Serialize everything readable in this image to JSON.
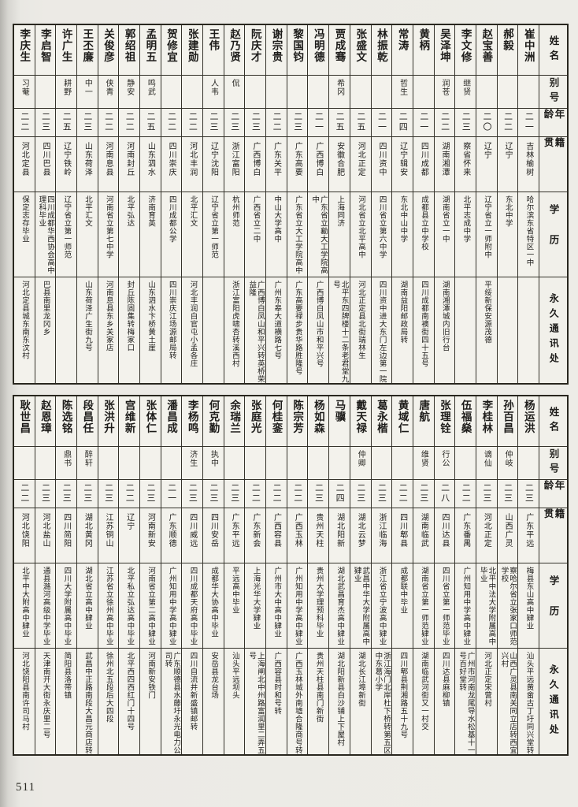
{
  "page": {
    "number": "511"
  },
  "headers": {
    "name": "姓名",
    "alias": "别号",
    "age": "年龄",
    "native_place": "籍贯",
    "education": "学历",
    "address": "永久通讯处"
  },
  "sections": [
    {
      "people": [
        {
          "name": "崔中洲",
          "alias": "",
          "age": "二一",
          "native_place": "吉林榆树",
          "education": "哈尔滨东省特区一中",
          "address": ""
        },
        {
          "name": "郝毅",
          "alias": "",
          "age": "二二",
          "native_place": "辽宁",
          "education": "东北中学",
          "address": ""
        },
        {
          "name": "赵宝善",
          "alias": "",
          "age": "二〇",
          "native_place": "辽宁",
          "education": "辽宁省立一师附中",
          "address": "平绥新保安源茂德"
        },
        {
          "name": "李文修",
          "alias": "继贤",
          "age": "二三",
          "native_place": "察省怀来",
          "education": "北平志成中学",
          "address": ""
        },
        {
          "name": "吴泽坤",
          "alias": "润苍",
          "age": "二二",
          "native_place": "湖南湘潭",
          "education": "湖南省立一中",
          "address": "湖南湘潭城内旧行台"
        },
        {
          "name": "黄柄",
          "alias": "",
          "age": "二一",
          "native_place": "四川成都",
          "education": "成都县立中学校",
          "address": "四川成都南襖街四十五号"
        },
        {
          "name": "常涛",
          "alias": "哲生",
          "age": "二四",
          "native_place": "辽宁辑安",
          "education": "东北中山中学",
          "address": "湖南益阳邮政局转"
        },
        {
          "name": "林振乾",
          "alias": "",
          "age": "二一",
          "native_place": "四川资中",
          "education": "四川省立第六中学",
          "address": "四川资中进大东门左边第一院"
        },
        {
          "name": "张盛文",
          "alias": "",
          "age": "二五",
          "native_place": "河北正定",
          "education": "河北省立北平高中",
          "address": "河北正定县北街瑞林生"
        },
        {
          "name": "贾成骞",
          "alias": "希冈",
          "age": "二五",
          "native_place": "安徽合肥",
          "education": "上海同济",
          "address": "北平东四牌楼十二条老君堂九号"
        },
        {
          "name": "冯明德",
          "alias": "",
          "age": "二一",
          "native_place": "广西博白",
          "education": "广东省立勷大工学院高中",
          "address": "广西博白凤山市和平兴号"
        },
        {
          "name": "黎国钧",
          "alias": "",
          "age": "二三",
          "native_place": "广东高要",
          "education": "广东省立大工学院高中",
          "address": "广东高要禄步贵华路胜隆号"
        },
        {
          "name": "谢宗贵",
          "alias": "",
          "age": "二二",
          "native_place": "广东关平",
          "education": "中山大学高中",
          "address": "广州东皋大道横路七号"
        },
        {
          "name": "阮庆才",
          "alias": "",
          "age": "二三",
          "native_place": "广西博白",
          "education": "广西省立二中",
          "address": "广西博白凤山和平兴转英桥荣益隆"
        },
        {
          "name": "赵乃贤",
          "alias": "侃",
          "age": "二三",
          "native_place": "浙江富阳",
          "education": "杭州师范",
          "address": "浙江富阳虎啸杏转溪西村"
        },
        {
          "name": "王伟",
          "alias": "人韦",
          "age": "二三",
          "native_place": "辽宁沈阳",
          "education": "辽宁省立第一师范",
          "address": ""
        },
        {
          "name": "张建勋",
          "alias": "",
          "age": "二二",
          "native_place": "河北丰润",
          "education": "北平汇文",
          "address": "河北丰润白官屯小孟各庄"
        },
        {
          "name": "贺修宜",
          "alias": "",
          "age": "二二",
          "native_place": "四川崇庆",
          "education": "四川成都公学",
          "address": "四川崇庆江场源邮局转"
        },
        {
          "name": "孟明五",
          "alias": "鸣武",
          "age": "二五",
          "native_place": "山东泗水",
          "education": "济南育英",
          "address": "山东泗水卞桥黄土崖"
        },
        {
          "name": "郭绍祖",
          "alias": "静安",
          "age": "二二",
          "native_place": "河南封丘",
          "education": "北平弘达",
          "address": "封丘陈固集转梅家口"
        },
        {
          "name": "关俊彦",
          "alias": "侠青",
          "age": "二二",
          "native_place": "河南息县",
          "education": "河南省立第七中学",
          "address": "河南息县东乡关家店"
        },
        {
          "name": "王丕廉",
          "alias": "中一",
          "age": "二三",
          "native_place": "山东荷泽",
          "education": "北平汇文",
          "address": "山东荷泽广生街九号"
        },
        {
          "name": "许广生",
          "alias": "耕野",
          "age": "二五",
          "native_place": "辽宁铁岭",
          "education": "辽宁省立第一师范",
          "address": ""
        },
        {
          "name": "李启智",
          "alias": "",
          "age": "二三",
          "native_place": "四川巴县",
          "education": "四川成都华西协会高中理科毕业",
          "address": "巴县南里龙冈乡"
        },
        {
          "name": "李庆生",
          "alias": "习菴",
          "age": "二二",
          "native_place": "河北定县",
          "education": "保定志存毕业",
          "address": "河北定县城东南东汶村"
        }
      ]
    },
    {
      "people": [
        {
          "name": "杨运洪",
          "alias": "",
          "age": "二三",
          "native_place": "广东平远",
          "education": "梅县东山高中肄业",
          "address": "汕头平远黄畲古丁圩同兴堂转"
        },
        {
          "name": "孙百昌",
          "alias": "仲岐",
          "age": "二三",
          "native_place": "山西广灵",
          "education": "察哈尔省立张家口师范学校",
          "address": "山西广灵县南关同立店转西宜兴村"
        },
        {
          "name": "李桂林",
          "alias": "谪仙",
          "age": "二三",
          "native_place": "河北正定",
          "education": "北平中法大学附属高中毕业",
          "address": "河北正定宋营村"
        },
        {
          "name": "伍福燊",
          "alias": "",
          "age": "二二",
          "native_place": "广东番禺",
          "education": "广州知用中学高中肄业",
          "address": "广州市河南龙尾导水松基十一号百好堂转"
        },
        {
          "name": "张理铨",
          "alias": "行公",
          "age": "二八",
          "native_place": "四川达县",
          "education": "四川省立第一师范毕业",
          "address": "四川达县麻柳镇"
        },
        {
          "name": "唐航",
          "alias": "维贤",
          "age": "二三",
          "native_place": "湖南临武",
          "education": "湖南省立第一师范肄业",
          "address": "湖南临武河街又一村交"
        },
        {
          "name": "黄域仁",
          "alias": "",
          "age": "二二",
          "native_place": "四川郫县",
          "education": "成都联中毕业",
          "address": "四川郫县荆湘路五十九号"
        },
        {
          "name": "葛永楷",
          "alias": "",
          "age": "二三",
          "native_place": "浙江临海",
          "education": "浙江省立宁波高中肄业",
          "address": "浙江海门北岸杜下桥转第五区中东葛小学"
        },
        {
          "name": "戴天禄",
          "alias": "仲卿",
          "age": "二三",
          "native_place": "湖北云梦",
          "education": "武昌中华大学附属高中肄业",
          "address": "湖北长江埠新街"
        },
        {
          "name": "马骥",
          "alias": "",
          "age": "二四",
          "native_place": "湖北阳新",
          "education": "湖北武昌育杰高中肄业",
          "address": "湖北阳新县白沙铺上下屋村"
        },
        {
          "name": "杨如森",
          "alias": "",
          "age": "二三",
          "native_place": "贵州天柱",
          "education": "贵州大学理预科毕业",
          "address": "贵州天柱县南门新街"
        },
        {
          "name": "陈宗芳",
          "alias": "",
          "age": "二二",
          "native_place": "广西玉林",
          "education": "广州知用中学高中肄业",
          "address": "广西玉林城外南墟合隆商号转"
        },
        {
          "name": "何桂銮",
          "alias": "",
          "age": "二二",
          "native_place": "广西容县",
          "education": "广州市大中高中肄业",
          "address": "广西容县时和号转"
        },
        {
          "name": "张庭光",
          "alias": "",
          "age": "二二",
          "native_place": "广东新会",
          "education": "上海光华大学肄业",
          "address": "上海闸北中州路富润里二弄五号"
        },
        {
          "name": "余瑞兰",
          "alias": "",
          "age": "二三",
          "native_place": "广东平远",
          "education": "平远高中毕业",
          "address": "汕头平远坝头"
        },
        {
          "name": "何克勤",
          "alias": "执中",
          "age": "二三",
          "native_place": "四川安岳",
          "education": "成都华大协高中毕业",
          "address": "安岳县龙台场"
        },
        {
          "name": "李杨鸣",
          "alias": "济生",
          "age": "二三",
          "native_place": "四川威远",
          "education": "四川成都天府高中毕业",
          "address": "四川自流井新盛镇邮转"
        },
        {
          "name": "潘昌成",
          "alias": "",
          "age": "二一",
          "native_place": "广东顺德",
          "education": "广州知用中学高中肄业",
          "address": "广东顺德县水藤圩永光电力公司转"
        },
        {
          "name": "张体仁",
          "alias": "",
          "age": "二三",
          "native_place": "河南新安",
          "education": "河南省立第二高中肄业",
          "address": "河南新安铁门"
        },
        {
          "name": "宫维新",
          "alias": "",
          "age": "二二",
          "native_place": "辽宁",
          "education": "北平私立弘达高中毕业",
          "address": "北平西四西红门十四号"
        },
        {
          "name": "张洪升",
          "alias": "",
          "age": "二三",
          "native_place": "江苏铜山",
          "education": "江苏省立徐州高中毕业",
          "address": "徐州北五段后大四段"
        },
        {
          "name": "段昌任",
          "alias": "醉轩",
          "age": "二三",
          "native_place": "湖北黄冈",
          "education": "湖北省立高中肄业",
          "address": "武昌中正路南段大昌元商店转"
        },
        {
          "name": "陈选铭",
          "alias": "鼎书",
          "age": "二三",
          "native_place": "四川简阳",
          "education": "四川大学附属高中毕业",
          "address": "简阳县洛带镇"
        },
        {
          "name": "赵恩璋",
          "alias": "",
          "age": "二三",
          "native_place": "河北盐山",
          "education": "通县潞河高级中学毕业",
          "address": "天津南开大街永庆里二号"
        },
        {
          "name": "耿世昌",
          "alias": "",
          "age": "二二",
          "native_place": "河北饶阳",
          "education": "北平中大附高中肄业",
          "address": "河北饶阳县南许司马村"
        }
      ]
    }
  ]
}
